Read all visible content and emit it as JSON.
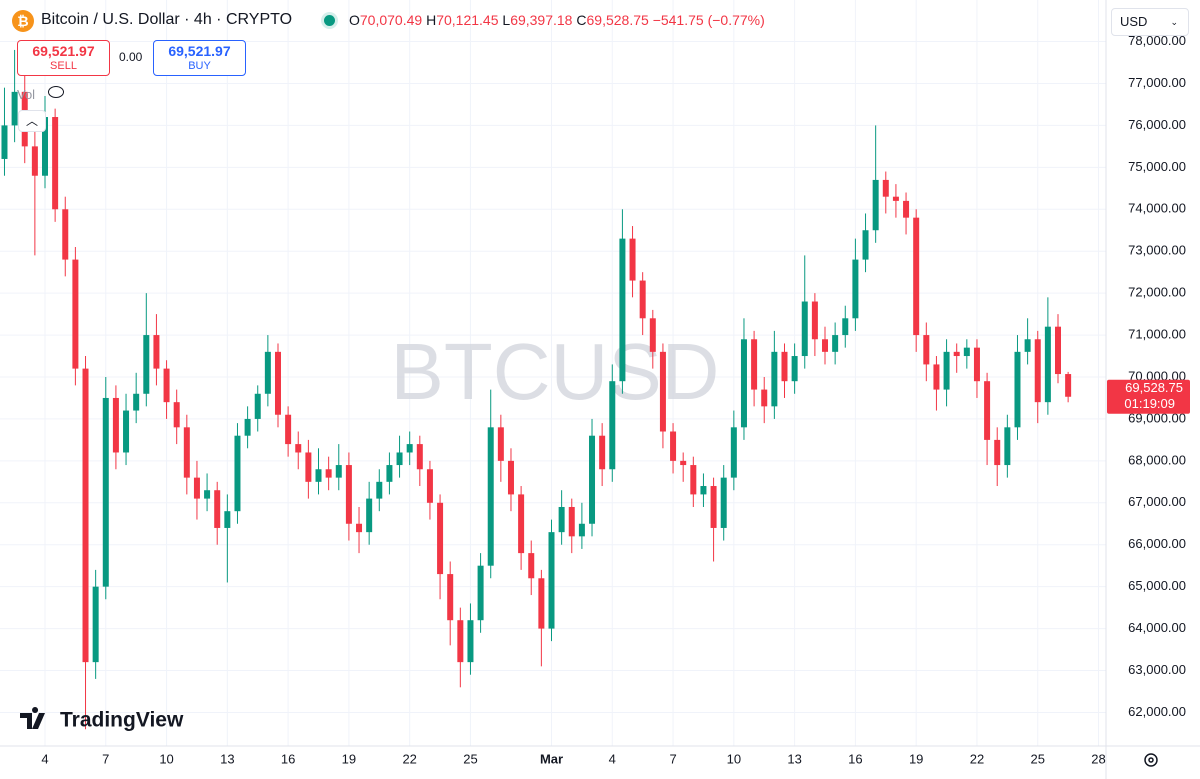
{
  "chart_data": {
    "type": "candlestick",
    "title": "Bitcoin / U.S. Dollar · 4h · CRYPTO",
    "watermark": "BTCUSD",
    "brand": "TradingView",
    "currency": "USD",
    "volume_label": "Vol",
    "ohlc_legend": {
      "open_label": "O",
      "open_value": "70,070.49",
      "high_label": "H",
      "high_value": "70,121.45",
      "low_label": "L",
      "low_value": "69,397.18",
      "close_label": "C",
      "close_value": "69,528.75",
      "change": "−541.75 (−0.77%)"
    },
    "sell": {
      "price": "69,521.97",
      "label": "SELL"
    },
    "spread": "0.00",
    "buy": {
      "price": "69,521.97",
      "label": "BUY"
    },
    "last_price": {
      "value": 69528.75,
      "label": "69,528.75"
    },
    "countdown": "01:19:09",
    "up_color": "#089981",
    "down_color": "#f23645",
    "grid": true,
    "categories": [
      null,
      null,
      null,
      null,
      "4",
      null,
      null,
      null,
      null,
      null,
      "7",
      null,
      null,
      null,
      null,
      null,
      "10",
      null,
      null,
      null,
      null,
      null,
      "13",
      null,
      null,
      null,
      null,
      null,
      "16",
      null,
      null,
      null,
      null,
      null,
      "19",
      null,
      null,
      null,
      null,
      null,
      "22",
      null,
      null,
      null,
      null,
      null,
      "25",
      null,
      null,
      null,
      null,
      null,
      null,
      null,
      "Mar",
      null,
      null,
      null,
      null,
      null,
      "4",
      null,
      null,
      null,
      null,
      null,
      "7",
      null,
      null,
      null,
      null,
      null,
      "10",
      null,
      null,
      null,
      null,
      null,
      "13",
      null,
      null,
      null,
      null,
      null,
      "16",
      null,
      null,
      null,
      null,
      null,
      "19",
      null,
      null,
      null,
      null,
      null,
      "22",
      null,
      null,
      null,
      null,
      null,
      "25",
      null,
      null,
      null,
      null,
      null,
      "28"
    ],
    "open": [
      75200,
      76000,
      76800,
      75500,
      74800,
      76200,
      74000,
      72800,
      70200,
      63200,
      65000,
      69500,
      68200,
      69200,
      69600,
      71000,
      70200,
      69400,
      68800,
      67600,
      67100,
      67300,
      66400,
      66800,
      68600,
      69000,
      69600,
      70600,
      69100,
      68400,
      68200,
      67500,
      67800,
      67600,
      67900,
      66500,
      66300,
      67100,
      67500,
      67900,
      68200,
      68400,
      67800,
      67000,
      65300,
      64200,
      63200,
      64200,
      65500,
      68800,
      68000,
      67200,
      65800,
      65200,
      64000,
      66300,
      66900,
      66200,
      66500,
      68600,
      67800,
      69900,
      73300,
      72300,
      71400,
      70600,
      68700,
      68000,
      67900,
      67200,
      67400,
      66400,
      67600,
      68800,
      70900,
      69700,
      69300,
      70600,
      69900,
      70500,
      71800,
      70900,
      70600,
      71000,
      71400,
      72800,
      73500,
      74700,
      74300,
      74200,
      73800,
      71000,
      70300,
      69700,
      70600,
      70500,
      70700,
      69900,
      68500,
      67900,
      68800,
      70600,
      70900,
      69400,
      71200,
      70070.49,
      null,
      null,
      null
    ],
    "high": [
      76900,
      77800,
      77300,
      76000,
      76700,
      76400,
      74300,
      73100,
      70500,
      65400,
      70000,
      69800,
      69600,
      70100,
      72000,
      71500,
      70400,
      69700,
      69100,
      68000,
      67700,
      67500,
      67200,
      68900,
      69300,
      69800,
      71000,
      70800,
      69300,
      68700,
      68500,
      68300,
      68100,
      68400,
      68200,
      66900,
      67500,
      67800,
      68200,
      68600,
      68700,
      68600,
      68000,
      67200,
      65600,
      64500,
      64600,
      65800,
      69700,
      69100,
      68300,
      67400,
      66100,
      65400,
      66600,
      67300,
      67100,
      67000,
      69000,
      68900,
      70300,
      74000,
      73600,
      72500,
      71600,
      70800,
      68900,
      68200,
      68100,
      67700,
      67600,
      67900,
      69200,
      71400,
      71100,
      70000,
      71100,
      70800,
      70800,
      72900,
      72000,
      71200,
      71300,
      71700,
      73300,
      73900,
      76000,
      74900,
      74600,
      74400,
      74000,
      71300,
      70500,
      70900,
      70800,
      70900,
      70900,
      70100,
      68800,
      69100,
      71000,
      71400,
      71100,
      71900,
      71500,
      70121.45,
      null,
      null,
      null
    ],
    "low": [
      74800,
      75600,
      75100,
      72900,
      74500,
      73700,
      72400,
      69800,
      61600,
      62800,
      64700,
      67800,
      67900,
      68900,
      69300,
      69800,
      69000,
      68400,
      67200,
      66600,
      66800,
      66000,
      65100,
      66500,
      68300,
      68700,
      69300,
      68800,
      68100,
      67800,
      67100,
      67200,
      67300,
      67300,
      66100,
      65800,
      66000,
      66800,
      67200,
      67600,
      67900,
      67400,
      66600,
      64700,
      63600,
      62600,
      62900,
      63900,
      65200,
      67500,
      66800,
      65400,
      64800,
      63100,
      63700,
      66000,
      65800,
      65900,
      66200,
      67400,
      67500,
      69600,
      71900,
      71000,
      70200,
      68300,
      67700,
      67500,
      66900,
      66900,
      65600,
      66100,
      67300,
      68500,
      69300,
      68900,
      69000,
      69500,
      69600,
      70200,
      70500,
      70300,
      70300,
      70700,
      71100,
      72500,
      73200,
      73900,
      73800,
      73400,
      70600,
      69900,
      69200,
      69300,
      70100,
      70200,
      69500,
      67900,
      67400,
      67600,
      68500,
      70300,
      68900,
      69100,
      69850,
      69397.18,
      null,
      null,
      null
    ],
    "close": [
      76000,
      76800,
      75500,
      74800,
      76200,
      74000,
      72800,
      70200,
      63200,
      65000,
      69500,
      68200,
      69200,
      69600,
      71000,
      70200,
      69400,
      68800,
      67600,
      67100,
      67300,
      66400,
      66800,
      68600,
      69000,
      69600,
      70600,
      69100,
      68400,
      68200,
      67500,
      67800,
      67600,
      67900,
      66500,
      66300,
      67100,
      67500,
      67900,
      68200,
      68400,
      67800,
      67000,
      65300,
      64200,
      63200,
      64200,
      65500,
      68800,
      68000,
      67200,
      65800,
      65200,
      64000,
      66300,
      66900,
      66200,
      66500,
      68600,
      67800,
      69900,
      73300,
      72300,
      71400,
      70600,
      68700,
      68000,
      67900,
      67200,
      67400,
      66400,
      67600,
      68800,
      70900,
      69700,
      69300,
      70600,
      69900,
      70500,
      71800,
      70900,
      70600,
      71000,
      71400,
      72800,
      73500,
      74700,
      74300,
      74200,
      73800,
      71000,
      70300,
      69700,
      70600,
      70500,
      70700,
      69900,
      68500,
      67900,
      68800,
      70600,
      70900,
      69400,
      71200,
      70070.49,
      69528.75,
      null,
      null,
      null
    ],
    "ylim": [
      61200,
      78800
    ],
    "yticks": [
      {
        "value": 62000,
        "label": "62,000.00"
      },
      {
        "value": 63000,
        "label": "63,000.00"
      },
      {
        "value": 64000,
        "label": "64,000.00"
      },
      {
        "value": 65000,
        "label": "65,000.00"
      },
      {
        "value": 66000,
        "label": "66,000.00"
      },
      {
        "value": 67000,
        "label": "67,000.00"
      },
      {
        "value": 68000,
        "label": "68,000.00"
      },
      {
        "value": 69000,
        "label": "69,000.00"
      },
      {
        "value": 70000,
        "label": "70,000.00"
      },
      {
        "value": 71000,
        "label": "71,000.00"
      },
      {
        "value": 72000,
        "label": "72,000.00"
      },
      {
        "value": 73000,
        "label": "73,000.00"
      },
      {
        "value": 74000,
        "label": "74,000.00"
      },
      {
        "value": 75000,
        "label": "75,000.00"
      },
      {
        "value": 76000,
        "label": "76,000.00"
      },
      {
        "value": 77000,
        "label": "77,000.00"
      },
      {
        "value": 78000,
        "label": "78,000.00"
      }
    ]
  }
}
